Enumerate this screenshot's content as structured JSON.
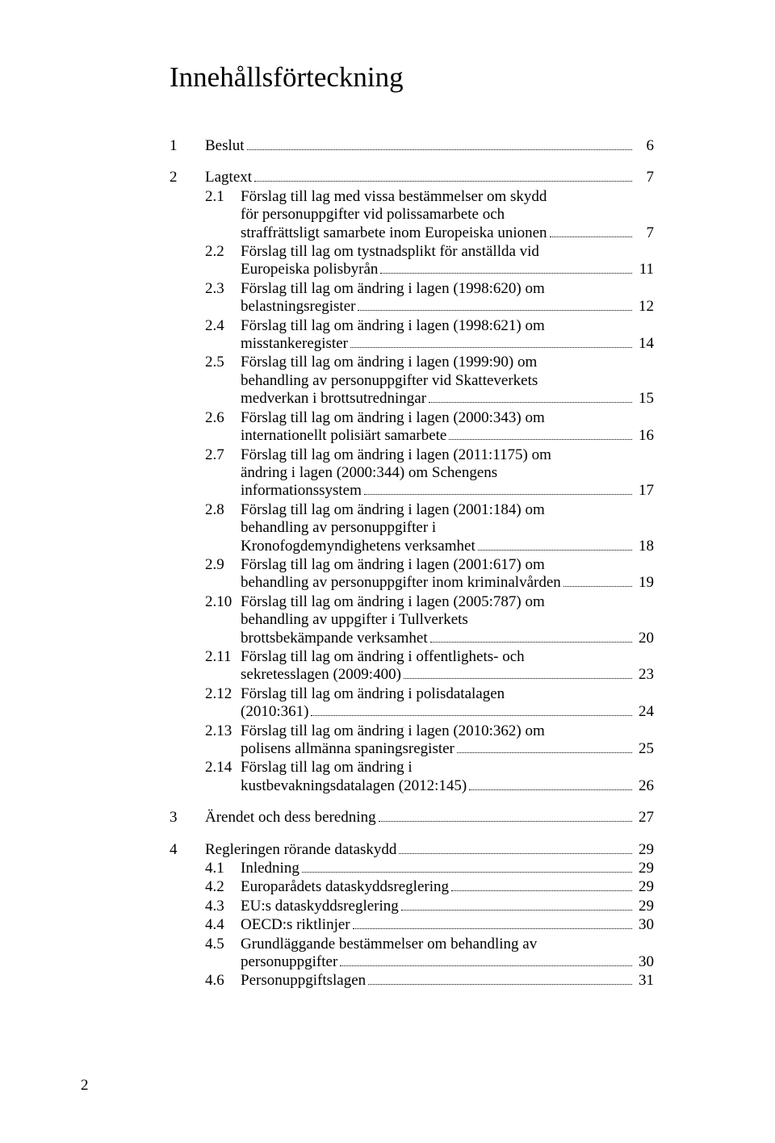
{
  "page_title": "Innehållsförteckning",
  "footer_page_number": "2",
  "toc": [
    {
      "level": 1,
      "num": "1",
      "lines": [
        "Beslut"
      ],
      "page": "6",
      "gap_before": false
    },
    {
      "level": 1,
      "num": "2",
      "lines": [
        "Lagtext"
      ],
      "page": "7",
      "gap_before": true
    },
    {
      "level": 2,
      "num": "2.1",
      "lines": [
        "Förslag till lag med vissa bestämmelser om skydd",
        "för personuppgifter vid polissamarbete och",
        "straffrättsligt samarbete inom Europeiska unionen"
      ],
      "page": "7",
      "gap_before": false
    },
    {
      "level": 2,
      "num": "2.2",
      "lines": [
        "Förslag till lag om tystnadsplikt för anställda vid",
        "Europeiska polisbyrån"
      ],
      "page": "11",
      "gap_before": false
    },
    {
      "level": 2,
      "num": "2.3",
      "lines": [
        "Förslag till lag om ändring i lagen (1998:620) om",
        "belastningsregister"
      ],
      "page": "12",
      "gap_before": false
    },
    {
      "level": 2,
      "num": "2.4",
      "lines": [
        "Förslag till lag om ändring i lagen (1998:621) om",
        "misstankeregister"
      ],
      "page": "14",
      "gap_before": false
    },
    {
      "level": 2,
      "num": "2.5",
      "lines": [
        "Förslag till lag om ändring i lagen (1999:90) om",
        "behandling av personuppgifter vid Skatteverkets",
        "medverkan i brottsutredningar"
      ],
      "page": "15",
      "gap_before": false
    },
    {
      "level": 2,
      "num": "2.6",
      "lines": [
        "Förslag till lag om ändring i lagen (2000:343) om",
        "internationellt polisiärt samarbete"
      ],
      "page": "16",
      "gap_before": false
    },
    {
      "level": 2,
      "num": "2.7",
      "lines": [
        "Förslag till lag om ändring i lagen (2011:1175) om",
        "ändring i lagen (2000:344) om Schengens",
        "informationssystem"
      ],
      "page": "17",
      "gap_before": false
    },
    {
      "level": 2,
      "num": "2.8",
      "lines": [
        "Förslag till lag om ändring i lagen (2001:184) om",
        "behandling av personuppgifter i",
        "Kronofogdemyndighetens verksamhet"
      ],
      "page": "18",
      "gap_before": false
    },
    {
      "level": 2,
      "num": "2.9",
      "lines": [
        "Förslag till lag om ändring i lagen (2001:617) om",
        "behandling av personuppgifter inom kriminalvården"
      ],
      "page": "19",
      "gap_before": false
    },
    {
      "level": 2,
      "num": "2.10",
      "lines": [
        "Förslag till lag om ändring i lagen (2005:787) om",
        "behandling av uppgifter i Tullverkets",
        "brottsbekämpande verksamhet"
      ],
      "page": "20",
      "gap_before": false
    },
    {
      "level": 2,
      "num": "2.11",
      "lines": [
        "Förslag till lag om ändring i offentlighets- och",
        "sekretesslagen (2009:400)"
      ],
      "page": "23",
      "gap_before": false
    },
    {
      "level": 2,
      "num": "2.12",
      "lines": [
        "Förslag till lag om ändring i polisdatalagen",
        "(2010:361)"
      ],
      "page": "24",
      "gap_before": false
    },
    {
      "level": 2,
      "num": "2.13",
      "lines": [
        "Förslag till lag om ändring i lagen (2010:362) om",
        "polisens allmänna spaningsregister"
      ],
      "page": "25",
      "gap_before": false
    },
    {
      "level": 2,
      "num": "2.14",
      "lines": [
        "Förslag till lag om ändring i",
        "kustbevakningsdatalagen (2012:145)"
      ],
      "page": "26",
      "gap_before": false
    },
    {
      "level": 1,
      "num": "3",
      "lines": [
        "Ärendet och dess beredning"
      ],
      "page": "27",
      "gap_before": true
    },
    {
      "level": 1,
      "num": "4",
      "lines": [
        "Regleringen rörande dataskydd"
      ],
      "page": "29",
      "gap_before": true
    },
    {
      "level": 2,
      "num": "4.1",
      "lines": [
        "Inledning"
      ],
      "page": "29",
      "gap_before": false
    },
    {
      "level": 2,
      "num": "4.2",
      "lines": [
        "Europarådets dataskyddsreglering"
      ],
      "page": "29",
      "gap_before": false
    },
    {
      "level": 2,
      "num": "4.3",
      "lines": [
        "EU:s dataskyddsreglering"
      ],
      "page": "29",
      "gap_before": false
    },
    {
      "level": 2,
      "num": "4.4",
      "lines": [
        "OECD:s riktlinjer"
      ],
      "page": "30",
      "gap_before": false
    },
    {
      "level": 2,
      "num": "4.5",
      "lines": [
        "Grundläggande bestämmelser om behandling av",
        "personuppgifter"
      ],
      "page": "30",
      "gap_before": false
    },
    {
      "level": 2,
      "num": "4.6",
      "lines": [
        "Personuppgiftslagen"
      ],
      "page": "31",
      "gap_before": false
    }
  ]
}
